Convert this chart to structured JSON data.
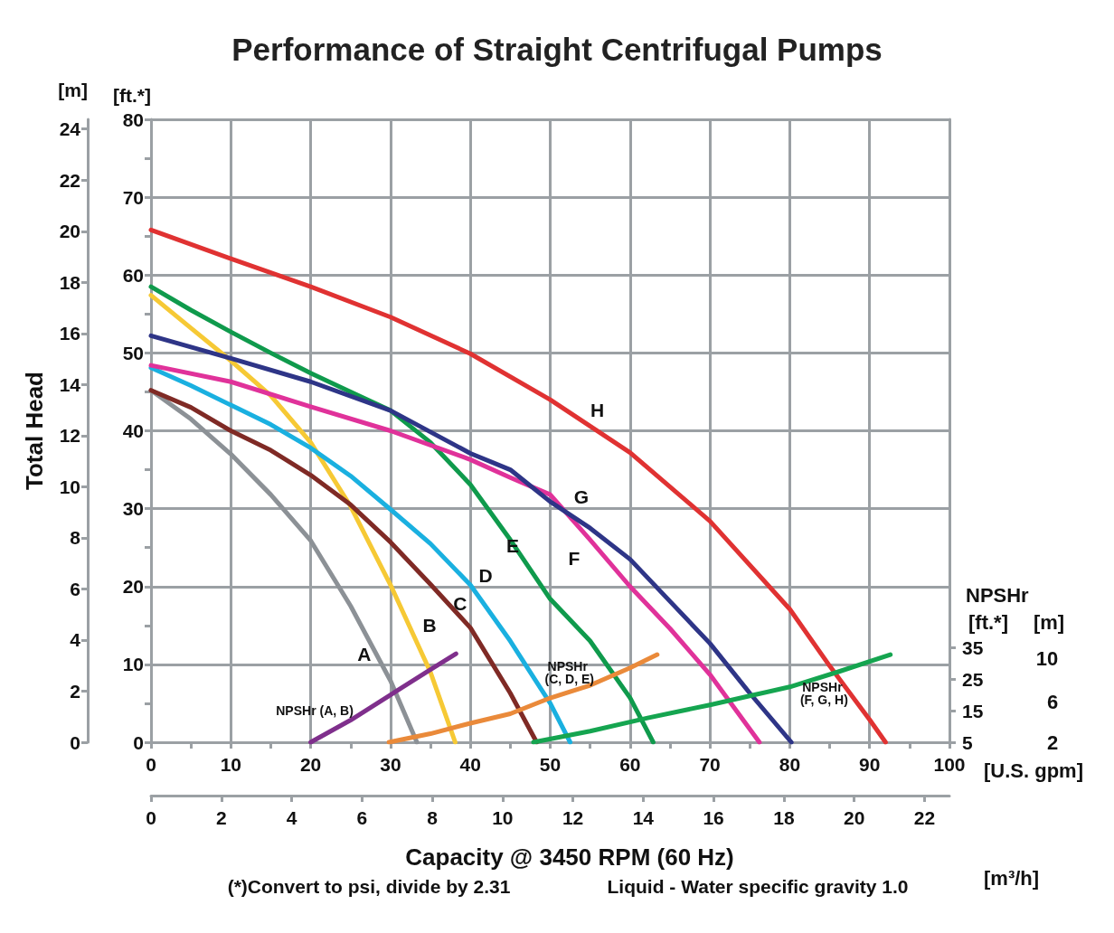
{
  "chart_data": {
    "type": "line",
    "title": "Performance of Straight Centrifugal Pumps",
    "xlabel": "[U.S. gpm]",
    "x2label": "[m³/h]",
    "ylabel": "[ft.*]",
    "y2label": "[m]",
    "y3label": "[ft.*]",
    "xlim": [
      0,
      100
    ],
    "xticks": [
      0,
      {
        "value": 5,
        "label": null
      },
      10,
      {
        "value": 15,
        "label": null
      },
      20,
      {
        "value": 25,
        "label": null
      },
      30,
      {
        "value": 35,
        "label": null
      },
      40,
      {
        "value": 45,
        "label": null
      },
      50,
      {
        "value": 55,
        "label": null
      },
      60,
      {
        "value": 65,
        "label": null
      },
      70,
      {
        "value": 75,
        "label": null
      },
      80,
      {
        "value": 85,
        "label": null
      },
      90,
      {
        "value": 95,
        "label": null
      },
      100
    ],
    "x2lim": [
      0,
      22.71
    ],
    "x2ticks": [
      0,
      2,
      4,
      6,
      8,
      10,
      12,
      14,
      16,
      18,
      20,
      22
    ],
    "ylim": [
      0,
      80
    ],
    "yticks": [
      0,
      {
        "value": 5,
        "label": null
      },
      10,
      {
        "value": 15,
        "label": null
      },
      20,
      {
        "value": 25,
        "label": null
      },
      30,
      {
        "value": 35,
        "label": null
      },
      40,
      {
        "value": 45,
        "label": null
      },
      50,
      {
        "value": 55,
        "label": null
      },
      60,
      {
        "value": 65,
        "label": null
      },
      70,
      {
        "value": 75,
        "label": null
      },
      80
    ],
    "y2lim": [
      0,
      24.38
    ],
    "y2ticks": [
      0,
      2,
      4,
      6,
      8,
      10,
      12,
      14,
      16,
      18,
      20,
      22,
      24
    ],
    "y3lim": [
      5,
      202
    ],
    "y3ticks": [
      5,
      15,
      25,
      35
    ],
    "grid": true,
    "marker": "none",
    "line_style": "solid",
    "series": [
      {
        "name": "A",
        "color": "#8c9196",
        "x": [
          0,
          5,
          10,
          15,
          20,
          25,
          30,
          33.3
        ],
        "values": [
          45.2,
          41.5,
          37,
          31.8,
          25.9,
          17.5,
          7.9,
          0
        ]
      },
      {
        "name": "B",
        "color": "#f6c935",
        "x": [
          0,
          5,
          10,
          15,
          20,
          25,
          30,
          35,
          38.1
        ],
        "values": [
          57.4,
          53.2,
          49,
          44.5,
          38.5,
          30.3,
          20.2,
          9,
          0
        ]
      },
      {
        "name": "C",
        "color": "#7f2a25",
        "x": [
          0,
          5,
          10,
          15,
          20,
          25,
          30,
          35,
          40,
          45,
          48.3
        ],
        "values": [
          45.2,
          43,
          40,
          37.5,
          34.3,
          30.5,
          25.7,
          20.3,
          14.7,
          6.3,
          0
        ]
      },
      {
        "name": "D",
        "color": "#1ab0e0",
        "x": [
          0,
          5,
          10,
          15,
          20,
          25,
          30,
          35,
          40,
          45,
          50,
          52.5
        ],
        "values": [
          48.1,
          45.8,
          43.3,
          40.8,
          37.8,
          34.2,
          29.9,
          25.5,
          20.2,
          13,
          5,
          0
        ]
      },
      {
        "name": "E",
        "color": "#0f9a4c",
        "x": [
          0,
          5,
          10,
          15,
          20,
          25,
          30,
          35,
          40,
          45,
          50,
          55,
          60,
          62.9
        ],
        "values": [
          58.5,
          55.5,
          52.7,
          50,
          47.4,
          45,
          42.6,
          38.5,
          33.1,
          26,
          18.4,
          13,
          5.7,
          0
        ]
      },
      {
        "name": "F",
        "color": "#e0329a",
        "x": [
          0,
          10,
          20,
          30,
          40,
          45,
          50,
          55,
          60,
          65,
          70,
          76.2
        ],
        "values": [
          48.4,
          46.3,
          43.1,
          40,
          36.3,
          34,
          31.8,
          26,
          20,
          14.6,
          8.7,
          0
        ]
      },
      {
        "name": "G",
        "color": "#2e3587",
        "x": [
          0,
          10,
          20,
          30,
          40,
          45,
          50,
          55,
          60,
          65,
          70,
          75,
          80.2
        ],
        "values": [
          52.2,
          49.3,
          46.3,
          42.6,
          37.1,
          35,
          30.9,
          27.5,
          23.5,
          18.1,
          12.7,
          6.3,
          0
        ]
      },
      {
        "name": "H",
        "color": "#e03232",
        "x": [
          0,
          10,
          20,
          30,
          40,
          50,
          60,
          70,
          80,
          85,
          90,
          92
        ],
        "values": [
          65.8,
          62.1,
          58.5,
          54.6,
          49.9,
          44,
          37.2,
          28.4,
          17.1,
          9.8,
          2.9,
          0
        ]
      },
      {
        "name": "NPSHr (A, B)",
        "color": "#7f2f8c",
        "axis": "y3",
        "x": [
          20,
          25,
          30,
          35,
          38.2
        ],
        "values": [
          5,
          12,
          20,
          28,
          33
        ]
      },
      {
        "name": "NPSHr (C, D, E)",
        "color": "#ea8a3a",
        "axis": "y3",
        "x": [
          29.8,
          35,
          40,
          45,
          50,
          55,
          60,
          63.4
        ],
        "values": [
          5,
          7.7,
          11,
          14,
          19,
          23,
          28.5,
          32.7
        ]
      },
      {
        "name": "NPSHr (F, G, H)",
        "color": "#15a550",
        "axis": "y3",
        "x": [
          47.9,
          55,
          62.2,
          70,
          75.6,
          80,
          86.1,
          92.6
        ],
        "values": [
          5,
          8.5,
          12.7,
          16.8,
          20,
          22.5,
          27.3,
          32.7
        ]
      }
    ],
    "annotations": [
      "Total Head",
      "NPSHr",
      "Capacity @ 3450 RPM (60 Hz)",
      "(*)Convert to psi, divide by 2.31",
      "Liquid - Water specific gravity 1.0",
      "[m]",
      "10",
      "6",
      "2"
    ]
  }
}
